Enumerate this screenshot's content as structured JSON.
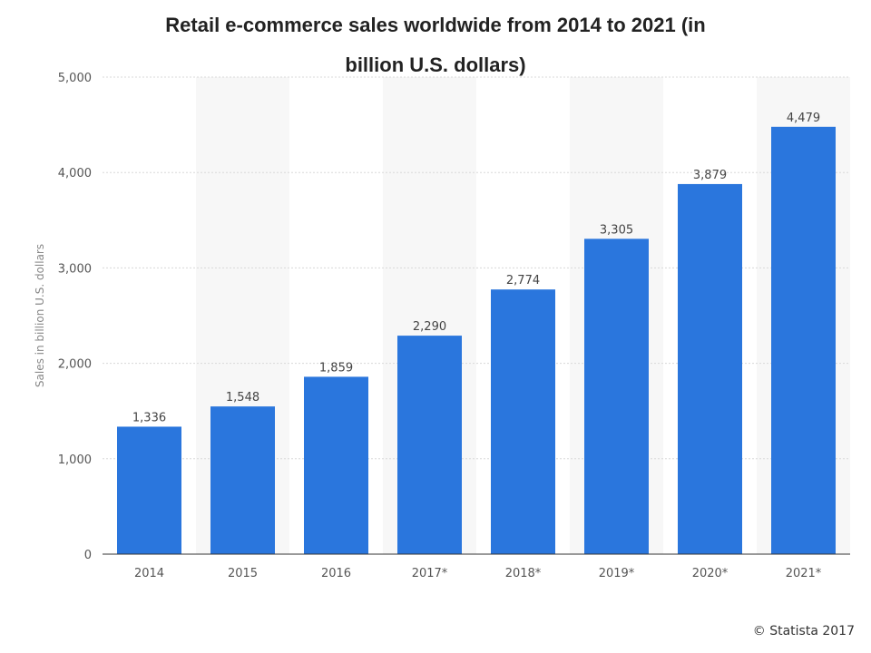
{
  "chart_data": {
    "type": "bar",
    "title_lines": [
      "Retail e-commerce sales worldwide from 2014 to 2021 (in",
      "billion U.S. dollars)"
    ],
    "categories": [
      "2014",
      "2015",
      "2016",
      "2017*",
      "2018*",
      "2019*",
      "2020*",
      "2021*"
    ],
    "values": [
      1336,
      1548,
      1859,
      2290,
      2774,
      3305,
      3879,
      4479
    ],
    "value_labels": [
      "1,336",
      "1,548",
      "1,859",
      "2,290",
      "2,774",
      "3,305",
      "3,879",
      "4,479"
    ],
    "ylabel": "Sales in billion U.S. dollars",
    "xlabel": "",
    "ylim": [
      0,
      5000
    ],
    "yticks": [
      0,
      1000,
      2000,
      3000,
      4000,
      5000
    ],
    "ytick_labels": [
      "0",
      "1,000",
      "2,000",
      "3,000",
      "4,000",
      "5,000"
    ],
    "grid": true,
    "bar_color": "#2a76dd"
  },
  "credit": "© Statista 2017"
}
